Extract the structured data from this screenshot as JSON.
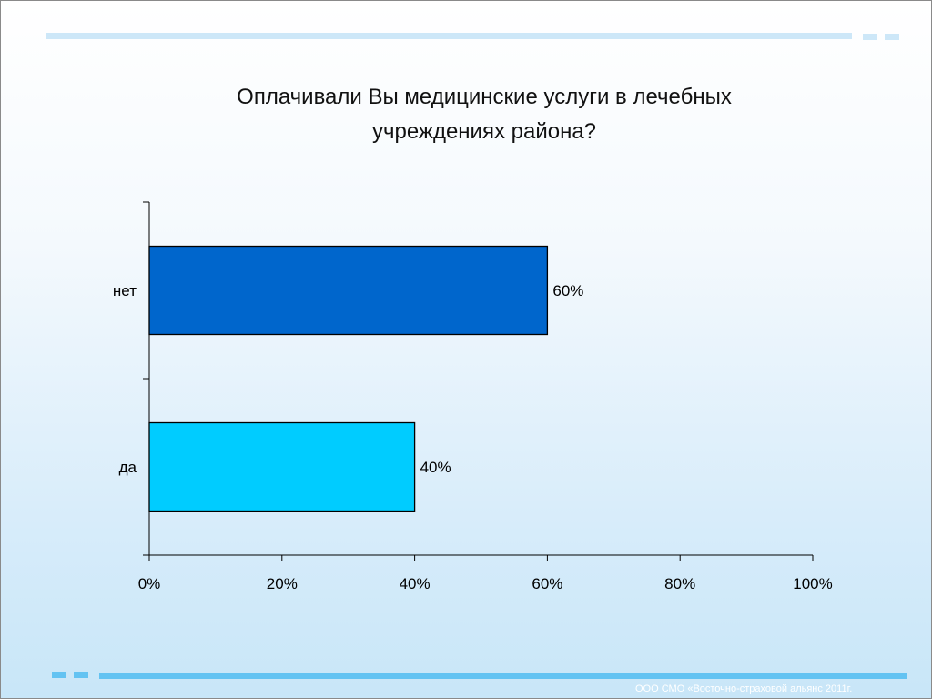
{
  "slide": {
    "title_line1": "Оплачивали Вы медицинские услуги в лечебных",
    "title_line2": "учреждениях района?",
    "footer": "ООО СМО «Восточно-страховой альянс 2011г."
  },
  "chart_data": {
    "type": "bar",
    "orientation": "horizontal",
    "title": "Оплачивали Вы медицинские услуги в лечебных учреждениях района?",
    "categories": [
      "нет",
      "да"
    ],
    "values": [
      60,
      40
    ],
    "value_labels": [
      "60%",
      "40%"
    ],
    "bar_colors": [
      "#0066cc",
      "#00ccff"
    ],
    "xlim": [
      0,
      100
    ],
    "x_ticks": [
      "0%",
      "20%",
      "40%",
      "60%",
      "80%",
      "100%"
    ],
    "grid": false,
    "legend": false
  }
}
